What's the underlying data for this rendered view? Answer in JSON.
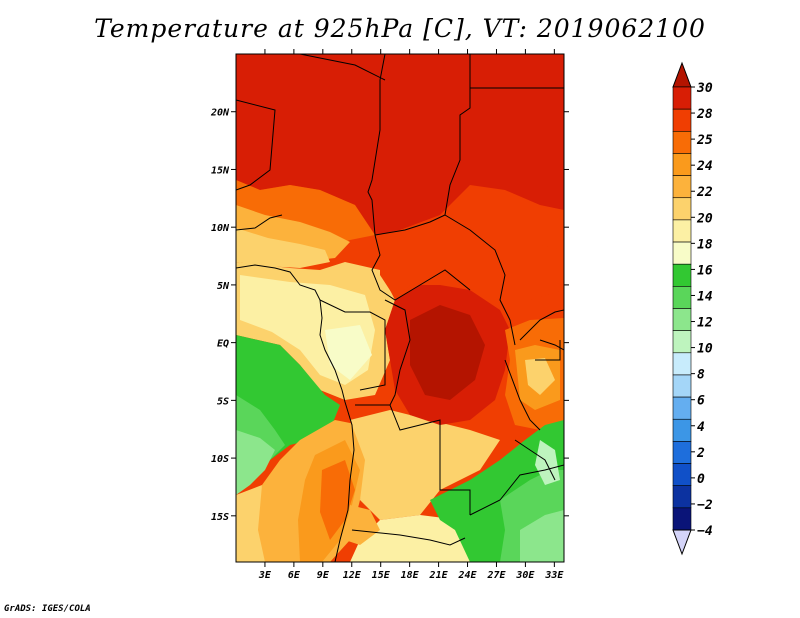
{
  "title": "Temperature at 925hPa [C], VT: 2019062100",
  "credit": "GrADS: IGES/COLA",
  "map": {
    "lon_range": [
      0,
      34
    ],
    "lat_range": [
      -19,
      25
    ],
    "lat_ticks": [
      {
        "value": 20,
        "label": "20N"
      },
      {
        "value": 15,
        "label": "15N"
      },
      {
        "value": 10,
        "label": "10N"
      },
      {
        "value": 5,
        "label": "5N"
      },
      {
        "value": 0,
        "label": "EQ"
      },
      {
        "value": -5,
        "label": "5S"
      },
      {
        "value": -10,
        "label": "10S"
      },
      {
        "value": -15,
        "label": "15S"
      }
    ],
    "lon_ticks": [
      {
        "value": 3,
        "label": "3E"
      },
      {
        "value": 6,
        "label": "6E"
      },
      {
        "value": 9,
        "label": "9E"
      },
      {
        "value": 12,
        "label": "12E"
      },
      {
        "value": 15,
        "label": "15E"
      },
      {
        "value": 18,
        "label": "18E"
      },
      {
        "value": 21,
        "label": "21E"
      },
      {
        "value": 24,
        "label": "24E"
      },
      {
        "value": 27,
        "label": "27E"
      },
      {
        "value": 30,
        "label": "30E"
      },
      {
        "value": 33,
        "label": "33E"
      }
    ]
  },
  "colorbar": {
    "labels": [
      "30",
      "28",
      "25",
      "24",
      "22",
      "20",
      "18",
      "16",
      "14",
      "12",
      "10",
      "8",
      "6",
      "4",
      "2",
      "0",
      "−2",
      "−4"
    ],
    "colors_top_to_bottom": [
      "#d81e05",
      "#f03e02",
      "#f86c06",
      "#fa9a1c",
      "#fcb23c",
      "#fcd26c",
      "#fcf0a4",
      "#f8fcc8",
      "#32c832",
      "#5ad65a",
      "#8ce68c",
      "#bef4be",
      "#c8ecfc",
      "#a4d6f8",
      "#64aef0",
      "#3c96e6",
      "#1e6edc",
      "#1050c8",
      "#0c32a0",
      "#0a1478"
    ],
    "over_color": "#b41400",
    "under_color": "#d4d4f8"
  }
}
